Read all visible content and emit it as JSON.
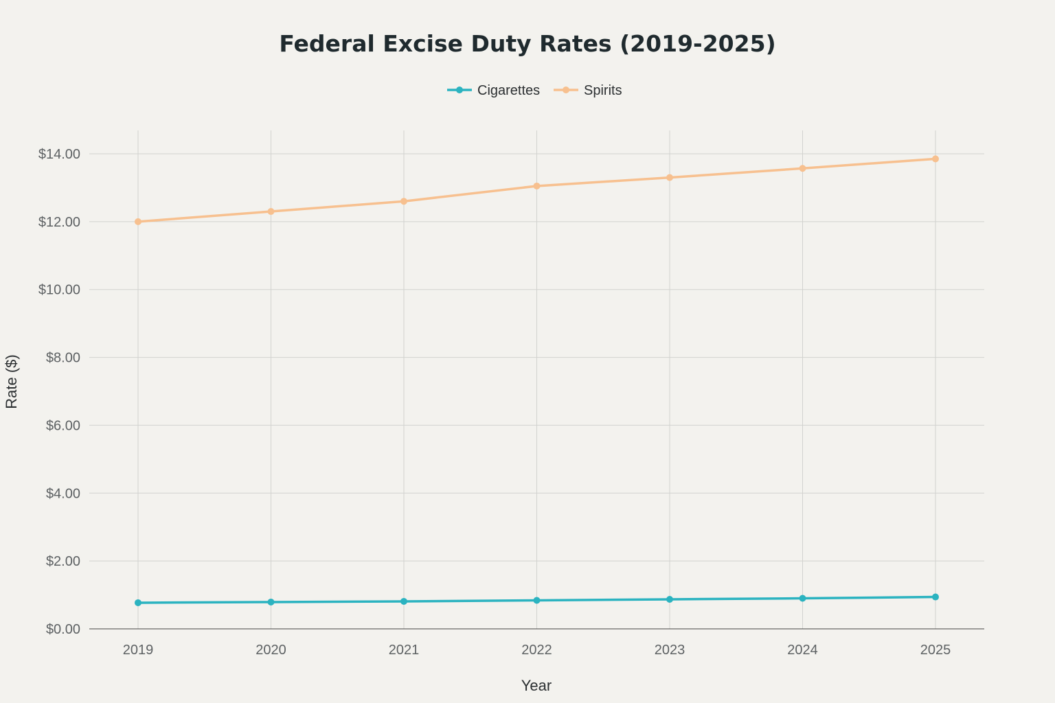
{
  "chart_data": {
    "type": "line",
    "title": "Federal Excise Duty Rates (2019-2025)",
    "xlabel": "Year",
    "ylabel": "Rate ($)",
    "categories": [
      "2019",
      "2020",
      "2021",
      "2022",
      "2023",
      "2024",
      "2025"
    ],
    "ylim": [
      0,
      14.7
    ],
    "yticks": [
      0,
      2,
      4,
      6,
      8,
      10,
      12,
      14
    ],
    "ytick_labels": [
      "$0.00",
      "$2.00",
      "$4.00",
      "$6.00",
      "$8.00",
      "$10.00",
      "$12.00",
      "$14.00"
    ],
    "grid": true,
    "legend_position": "top-center",
    "series": [
      {
        "name": "Cigarettes",
        "color": "#2bb3c0",
        "values": [
          0.77,
          0.79,
          0.81,
          0.84,
          0.87,
          0.9,
          0.94
        ]
      },
      {
        "name": "Spirits",
        "color": "#f7c08f",
        "values": [
          12.0,
          12.3,
          12.6,
          13.05,
          13.3,
          13.57,
          13.85
        ]
      }
    ]
  }
}
